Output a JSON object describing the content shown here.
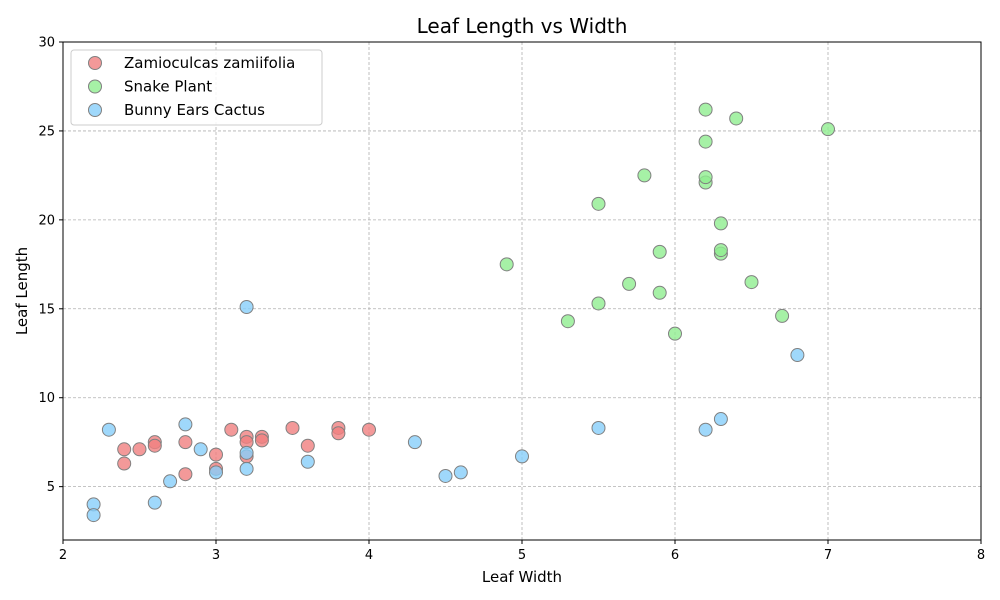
{
  "chart_data": {
    "type": "scatter",
    "title": "Leaf Length vs Width",
    "xlabel": "Leaf Width",
    "ylabel": "Leaf Length",
    "xlim": [
      2,
      8
    ],
    "ylim": [
      2,
      30
    ],
    "xticks": [
      2,
      3,
      4,
      5,
      6,
      7,
      8
    ],
    "yticks": [
      5,
      10,
      15,
      20,
      25,
      30
    ],
    "grid": true,
    "legend_position": "top-left",
    "series": [
      {
        "name": "Zamioculcas zamiifolia",
        "color": "#f08080",
        "points": [
          [
            2.4,
            7.1
          ],
          [
            2.4,
            6.3
          ],
          [
            2.5,
            7.1
          ],
          [
            2.6,
            7.5
          ],
          [
            2.6,
            7.3
          ],
          [
            2.8,
            7.5
          ],
          [
            2.8,
            5.7
          ],
          [
            3.0,
            6.0
          ],
          [
            3.0,
            6.8
          ],
          [
            3.1,
            8.2
          ],
          [
            3.2,
            7.8
          ],
          [
            3.2,
            7.5
          ],
          [
            3.2,
            6.7
          ],
          [
            3.3,
            7.8
          ],
          [
            3.3,
            7.6
          ],
          [
            3.5,
            8.3
          ],
          [
            3.6,
            7.3
          ],
          [
            3.8,
            8.3
          ],
          [
            3.8,
            8.0
          ],
          [
            4.0,
            8.2
          ]
        ]
      },
      {
        "name": "Snake Plant",
        "color": "#90ee90",
        "points": [
          [
            4.9,
            17.5
          ],
          [
            5.3,
            14.3
          ],
          [
            5.5,
            20.9
          ],
          [
            5.5,
            15.3
          ],
          [
            5.7,
            16.4
          ],
          [
            5.8,
            22.5
          ],
          [
            5.9,
            18.2
          ],
          [
            5.9,
            15.9
          ],
          [
            6.0,
            13.6
          ],
          [
            6.2,
            26.2
          ],
          [
            6.2,
            24.4
          ],
          [
            6.2,
            22.1
          ],
          [
            6.2,
            22.4
          ],
          [
            6.3,
            19.8
          ],
          [
            6.3,
            18.1
          ],
          [
            6.3,
            18.3
          ],
          [
            6.4,
            25.7
          ],
          [
            6.5,
            16.5
          ],
          [
            6.7,
            14.6
          ],
          [
            7.0,
            25.1
          ]
        ]
      },
      {
        "name": "Bunny Ears Cactus",
        "color": "#87cefa",
        "points": [
          [
            2.2,
            4.0
          ],
          [
            2.2,
            3.4
          ],
          [
            2.3,
            8.2
          ],
          [
            2.6,
            4.1
          ],
          [
            2.7,
            5.3
          ],
          [
            2.8,
            8.5
          ],
          [
            2.9,
            7.1
          ],
          [
            3.0,
            5.8
          ],
          [
            3.2,
            15.1
          ],
          [
            3.2,
            6.9
          ],
          [
            3.2,
            6.0
          ],
          [
            3.6,
            6.4
          ],
          [
            4.3,
            7.5
          ],
          [
            4.5,
            5.6
          ],
          [
            4.6,
            5.8
          ],
          [
            5.0,
            6.7
          ],
          [
            5.5,
            8.3
          ],
          [
            6.2,
            8.2
          ],
          [
            6.3,
            8.8
          ],
          [
            6.8,
            12.4
          ]
        ]
      }
    ]
  }
}
